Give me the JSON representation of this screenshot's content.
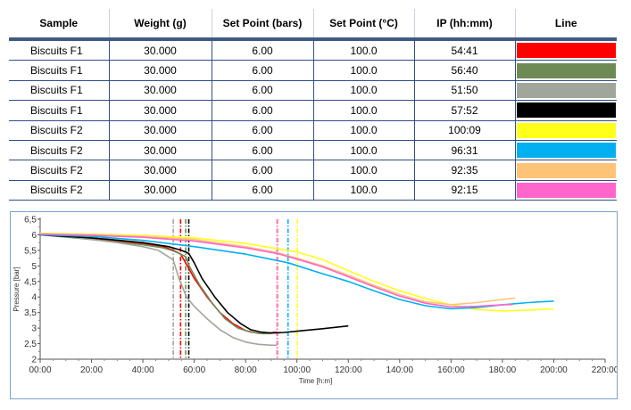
{
  "table": {
    "headers": [
      "Sample",
      "Weight (g)",
      "Set Point (bars)",
      "Set Point (°C)",
      "IP (hh:mm)",
      "Line"
    ],
    "rows": [
      {
        "sample": "Biscuits F1",
        "weight": "30.000",
        "sp_bars": "6.00",
        "sp_c": "100.0",
        "ip": "54:41",
        "color": "#ff0000"
      },
      {
        "sample": "Biscuits F1",
        "weight": "30.000",
        "sp_bars": "6.00",
        "sp_c": "100.0",
        "ip": "56:40",
        "color": "#6e8b55"
      },
      {
        "sample": "Biscuits F1",
        "weight": "30.000",
        "sp_bars": "6.00",
        "sp_c": "100.0",
        "ip": "51:50",
        "color": "#a0a69a"
      },
      {
        "sample": "Biscuits F1",
        "weight": "30.000",
        "sp_bars": "6.00",
        "sp_c": "100.0",
        "ip": "57:52",
        "color": "#000000"
      },
      {
        "sample": "Biscuits F2",
        "weight": "30.000",
        "sp_bars": "6.00",
        "sp_c": "100.0",
        "ip": "100:09",
        "color": "#ffff1a"
      },
      {
        "sample": "Biscuits F2",
        "weight": "30.000",
        "sp_bars": "6.00",
        "sp_c": "100.0",
        "ip": "96:31",
        "color": "#00b0f0"
      },
      {
        "sample": "Biscuits F2",
        "weight": "30.000",
        "sp_bars": "6.00",
        "sp_c": "100.0",
        "ip": "92:35",
        "color": "#ffc378"
      },
      {
        "sample": "Biscuits F2",
        "weight": "30.000",
        "sp_bars": "6.00",
        "sp_c": "100.0",
        "ip": "92:15",
        "color": "#ff66cc"
      }
    ]
  },
  "chart_data": {
    "type": "line",
    "title": "",
    "xlabel": "Time [h:m]",
    "ylabel": "Pressure [bar]",
    "xlim": [
      0,
      220
    ],
    "ylim": [
      2,
      6.5
    ],
    "x_ticks": [
      "00:00",
      "20:00",
      "40:00",
      "60:00",
      "80:00",
      "100:00",
      "120:00",
      "140:00",
      "160:00",
      "180:00",
      "200:00",
      "220:00"
    ],
    "x_tick_values": [
      0,
      20,
      40,
      60,
      80,
      100,
      120,
      140,
      160,
      180,
      200,
      220
    ],
    "y_ticks": [
      "2",
      "2,5",
      "3",
      "3,5",
      "4",
      "4,5",
      "5",
      "5,5",
      "6",
      "6,5"
    ],
    "y_tick_values": [
      2,
      2.5,
      3,
      3.5,
      4,
      4.5,
      5,
      5.5,
      6,
      6.5
    ],
    "series": [
      {
        "name": "Biscuits F1 (54:41)",
        "color": "#ff0000",
        "ip": 54.68,
        "points": [
          [
            0,
            6.0
          ],
          [
            10,
            5.95
          ],
          [
            20,
            5.88
          ],
          [
            30,
            5.8
          ],
          [
            40,
            5.72
          ],
          [
            48,
            5.62
          ],
          [
            52,
            5.5
          ],
          [
            54.7,
            5.38
          ],
          [
            57,
            5.05
          ],
          [
            60,
            4.6
          ],
          [
            65,
            4.0
          ],
          [
            70,
            3.5
          ],
          [
            75,
            3.15
          ],
          [
            80,
            2.92
          ],
          [
            85,
            2.83
          ],
          [
            90,
            2.85
          ],
          [
            92,
            2.87
          ]
        ]
      },
      {
        "name": "Biscuits F1 (56:40)",
        "color": "#6e8b55",
        "ip": 56.67,
        "points": [
          [
            0,
            6.0
          ],
          [
            10,
            5.93
          ],
          [
            20,
            5.85
          ],
          [
            30,
            5.77
          ],
          [
            40,
            5.68
          ],
          [
            48,
            5.58
          ],
          [
            52,
            5.48
          ],
          [
            56.7,
            5.3
          ],
          [
            58,
            5.0
          ],
          [
            62,
            4.4
          ],
          [
            67,
            3.8
          ],
          [
            72,
            3.3
          ],
          [
            77,
            3.0
          ],
          [
            82,
            2.87
          ],
          [
            87,
            2.82
          ],
          [
            90,
            2.83
          ]
        ]
      },
      {
        "name": "Biscuits F1 (51:50)",
        "color": "#a0a69a",
        "ip": 51.83,
        "points": [
          [
            0,
            6.05
          ],
          [
            10,
            5.95
          ],
          [
            20,
            5.85
          ],
          [
            30,
            5.75
          ],
          [
            40,
            5.62
          ],
          [
            46,
            5.5
          ],
          [
            51.8,
            5.2
          ],
          [
            54,
            4.6
          ],
          [
            57,
            4.0
          ],
          [
            60,
            3.7
          ],
          [
            65,
            3.3
          ],
          [
            70,
            2.95
          ],
          [
            75,
            2.7
          ],
          [
            80,
            2.55
          ],
          [
            85,
            2.48
          ],
          [
            90,
            2.45
          ],
          [
            92,
            2.45
          ]
        ]
      },
      {
        "name": "Biscuits F1 (57:52)",
        "color": "#000000",
        "ip": 57.87,
        "points": [
          [
            0,
            6.0
          ],
          [
            10,
            5.95
          ],
          [
            20,
            5.9
          ],
          [
            30,
            5.83
          ],
          [
            40,
            5.75
          ],
          [
            50,
            5.62
          ],
          [
            55,
            5.5
          ],
          [
            57.9,
            5.4
          ],
          [
            60,
            5.1
          ],
          [
            63,
            4.6
          ],
          [
            68,
            4.0
          ],
          [
            73,
            3.5
          ],
          [
            78,
            3.15
          ],
          [
            82,
            2.95
          ],
          [
            86,
            2.87
          ],
          [
            90,
            2.84
          ],
          [
            95,
            2.86
          ],
          [
            100,
            2.9
          ],
          [
            110,
            2.98
          ],
          [
            120,
            3.07
          ]
        ]
      },
      {
        "name": "Biscuits F2 (100:09)",
        "color": "#ffff1a",
        "ip": 100.15,
        "points": [
          [
            0,
            6.05
          ],
          [
            20,
            6.02
          ],
          [
            40,
            5.98
          ],
          [
            60,
            5.9
          ],
          [
            80,
            5.72
          ],
          [
            100,
            5.45
          ],
          [
            110,
            5.2
          ],
          [
            120,
            4.85
          ],
          [
            130,
            4.5
          ],
          [
            140,
            4.2
          ],
          [
            150,
            3.95
          ],
          [
            160,
            3.75
          ],
          [
            170,
            3.6
          ],
          [
            180,
            3.55
          ],
          [
            190,
            3.58
          ],
          [
            200,
            3.62
          ]
        ]
      },
      {
        "name": "Biscuits F2 (96:31)",
        "color": "#00b0f0",
        "ip": 96.52,
        "points": [
          [
            0,
            6.0
          ],
          [
            20,
            5.95
          ],
          [
            40,
            5.82
          ],
          [
            60,
            5.62
          ],
          [
            80,
            5.38
          ],
          [
            96.5,
            5.1
          ],
          [
            110,
            4.75
          ],
          [
            120,
            4.5
          ],
          [
            130,
            4.2
          ],
          [
            140,
            3.92
          ],
          [
            150,
            3.72
          ],
          [
            160,
            3.62
          ],
          [
            170,
            3.66
          ],
          [
            180,
            3.75
          ],
          [
            190,
            3.82
          ],
          [
            200,
            3.87
          ]
        ]
      },
      {
        "name": "Biscuits F2 (92:35)",
        "color": "#ffc378",
        "ip": 92.58,
        "points": [
          [
            0,
            6.03
          ],
          [
            20,
            6.0
          ],
          [
            40,
            5.95
          ],
          [
            60,
            5.85
          ],
          [
            80,
            5.62
          ],
          [
            92.6,
            5.42
          ],
          [
            100,
            5.25
          ],
          [
            110,
            5.0
          ],
          [
            120,
            4.7
          ],
          [
            130,
            4.38
          ],
          [
            140,
            4.08
          ],
          [
            150,
            3.85
          ],
          [
            160,
            3.75
          ],
          [
            170,
            3.82
          ],
          [
            180,
            3.92
          ],
          [
            185,
            3.97
          ]
        ]
      },
      {
        "name": "Biscuits F2 (92:15)",
        "color": "#ff66cc",
        "ip": 92.25,
        "points": [
          [
            0,
            6.02
          ],
          [
            20,
            5.98
          ],
          [
            40,
            5.92
          ],
          [
            60,
            5.8
          ],
          [
            80,
            5.58
          ],
          [
            92.3,
            5.4
          ],
          [
            100,
            5.22
          ],
          [
            110,
            4.97
          ],
          [
            120,
            4.65
          ],
          [
            130,
            4.33
          ],
          [
            140,
            4.03
          ],
          [
            150,
            3.8
          ],
          [
            160,
            3.68
          ],
          [
            170,
            3.7
          ],
          [
            180,
            3.75
          ],
          [
            184,
            3.76
          ]
        ]
      }
    ]
  }
}
